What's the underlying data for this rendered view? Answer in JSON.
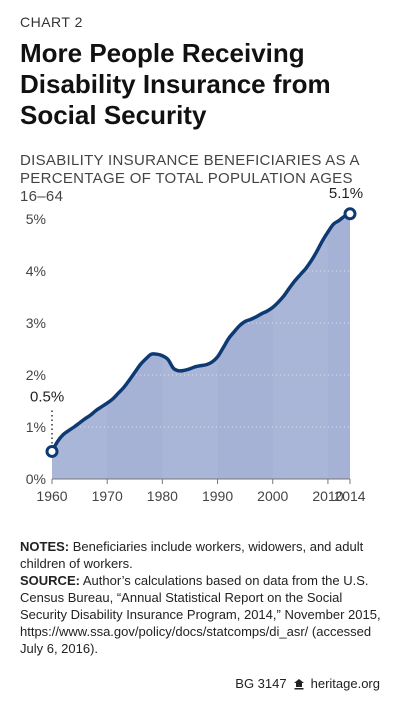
{
  "header": {
    "chart_label": "CHART 2",
    "title": "More People Receiving Disability Insurance from Social Security",
    "subtitle": "DISABILITY INSURANCE BENEFICIARIES AS A PERCENTAGE OF TOTAL POPULATION AGES 16–64"
  },
  "chart_data": {
    "type": "area",
    "title": "More People Receiving Disability Insurance from Social Security",
    "subtitle": "DISABILITY INSURANCE BENEFICIARIES AS A PERCENTAGE OF TOTAL POPULATION AGES 16–64",
    "x": [
      1960,
      1961,
      1962,
      1963,
      1964,
      1965,
      1966,
      1967,
      1968,
      1969,
      1970,
      1971,
      1972,
      1973,
      1974,
      1975,
      1976,
      1977,
      1978,
      1979,
      1980,
      1981,
      1982,
      1983,
      1984,
      1985,
      1986,
      1987,
      1988,
      1989,
      1990,
      1991,
      1992,
      1993,
      1994,
      1995,
      1996,
      1997,
      1998,
      1999,
      2000,
      2001,
      2002,
      2003,
      2004,
      2005,
      2006,
      2007,
      2008,
      2009,
      2010,
      2011,
      2012,
      2013,
      2014
    ],
    "values": [
      0.53,
      0.72,
      0.85,
      0.93,
      1.0,
      1.08,
      1.16,
      1.23,
      1.32,
      1.39,
      1.46,
      1.54,
      1.65,
      1.76,
      1.9,
      2.05,
      2.2,
      2.31,
      2.4,
      2.4,
      2.37,
      2.3,
      2.13,
      2.08,
      2.09,
      2.12,
      2.16,
      2.18,
      2.2,
      2.25,
      2.35,
      2.52,
      2.7,
      2.83,
      2.95,
      3.03,
      3.07,
      3.12,
      3.18,
      3.23,
      3.3,
      3.4,
      3.52,
      3.67,
      3.81,
      3.93,
      4.05,
      4.2,
      4.38,
      4.58,
      4.75,
      4.9,
      4.97,
      5.05,
      5.1
    ],
    "xticks": [
      "1960",
      "1970",
      "1980",
      "1990",
      "2000",
      "2010",
      "2014"
    ],
    "xtick_values": [
      1960,
      1970,
      1980,
      1990,
      2000,
      2010,
      2014
    ],
    "yticks": [
      "0%",
      "1%",
      "2%",
      "3%",
      "4%",
      "5%"
    ],
    "ytick_values": [
      0,
      1,
      2,
      3,
      4,
      5
    ],
    "xlim": [
      1960,
      2014
    ],
    "ylim": [
      0,
      5.4
    ],
    "annotations": [
      {
        "x": 1960,
        "y": 0.53,
        "text": "0.5%"
      },
      {
        "x": 2014,
        "y": 5.1,
        "text": "5.1%"
      }
    ],
    "colors": {
      "line": "#0e3a73",
      "fill": "#aab6d8",
      "band_light": "#b4bfdd",
      "band_dark": "#a6b2d5"
    }
  },
  "notes": {
    "notes_label": "NOTES:",
    "notes_text": " Beneficiaries include workers, widowers, and adult children of workers.",
    "source_label": "SOURCE:",
    "source_text": " Author’s calculations based on data from the U.S. Census Bureau, “Annual Statistical Report on the Social Security Disability Insurance Program, 2014,” November 2015, https://www.ssa.gov/policy/docs/statcomps/di_asr/ (accessed July 6, 2016)."
  },
  "footer": {
    "code": "BG 3147",
    "site": "heritage.org",
    "logo_icon": "lamp-icon"
  }
}
